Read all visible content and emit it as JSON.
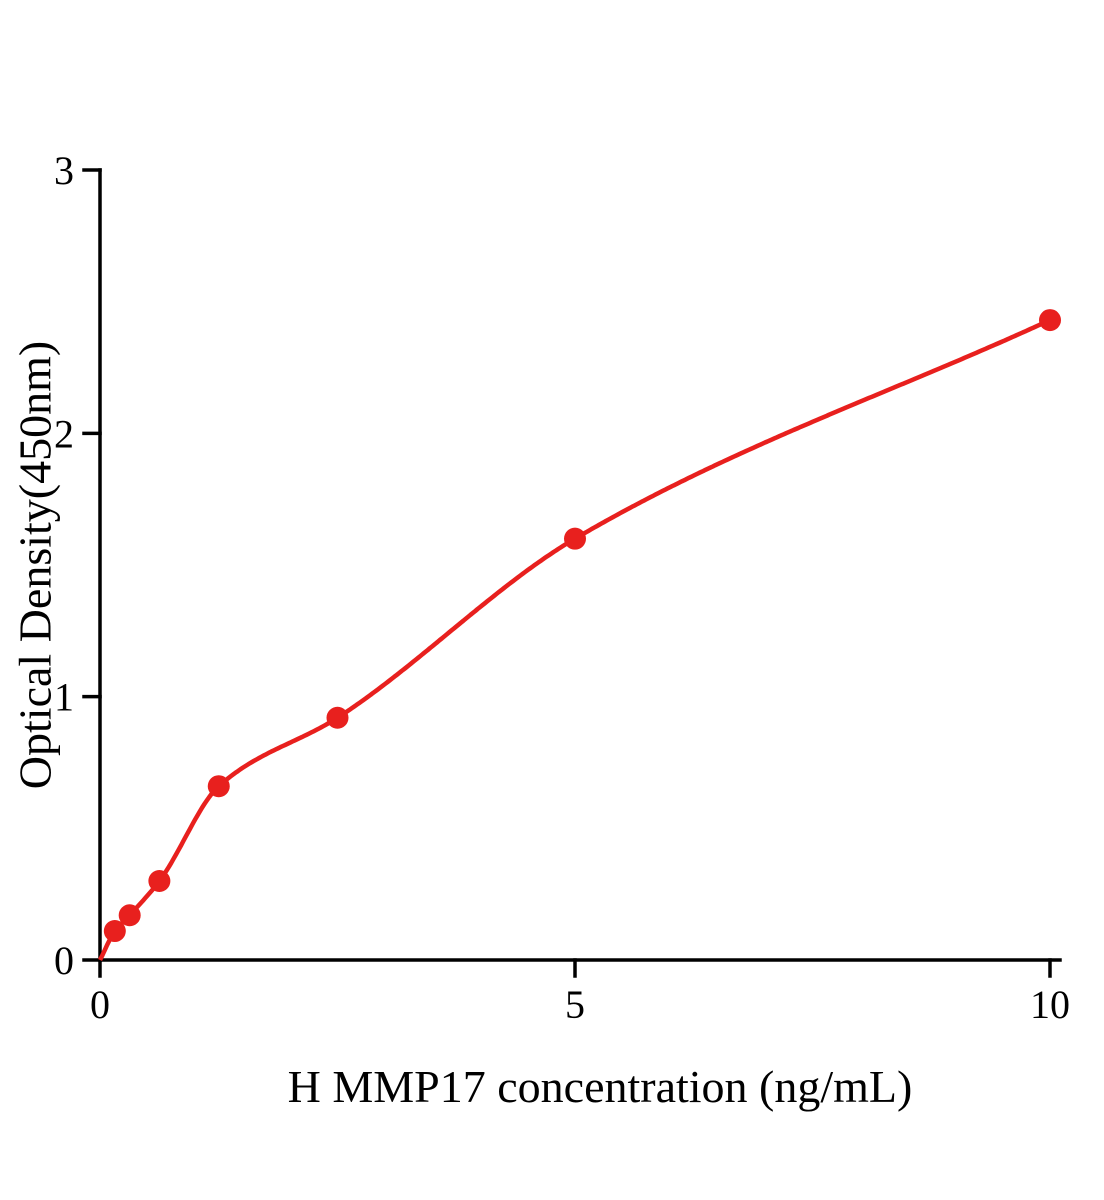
{
  "chart_data": {
    "type": "scatter",
    "title": "",
    "xlabel": "H MMP17 concentration (ng/mL)",
    "ylabel": "Optical Density(450nm)",
    "x": [
      0.156,
      0.3125,
      0.625,
      1.25,
      2.5,
      5,
      10
    ],
    "y": [
      0.11,
      0.17,
      0.3,
      0.66,
      0.92,
      1.6,
      2.43
    ],
    "curve_start": [
      0,
      0
    ],
    "xlim": [
      0,
      10
    ],
    "ylim": [
      0,
      3
    ],
    "xticks": [
      0,
      5,
      10
    ],
    "yticks": [
      0,
      1,
      2,
      3
    ],
    "grid": false,
    "marker_color": "#e8201e",
    "line_color": "#e8201e",
    "axis_color": "#000000",
    "background_color": "#ffffff"
  }
}
